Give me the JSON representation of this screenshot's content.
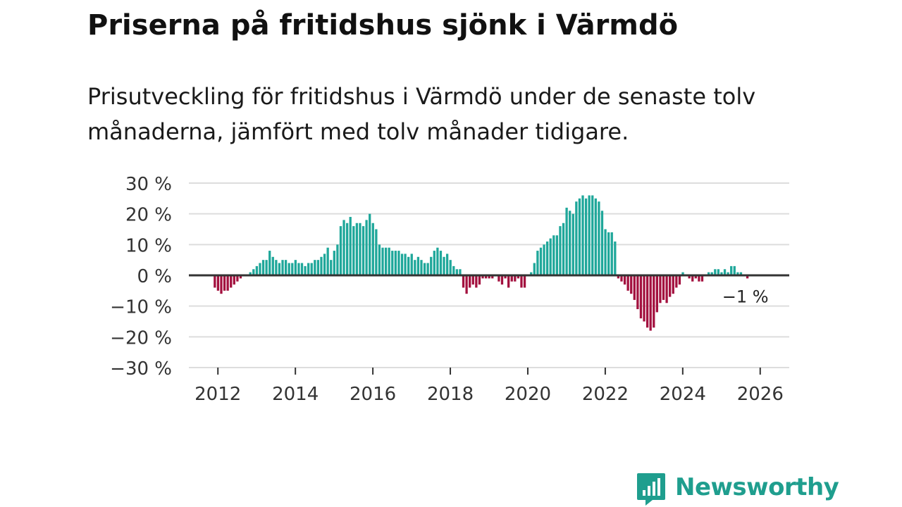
{
  "title": "Priserna på fritidshus sjönk i Värmdö",
  "subtitle": "Prisutveckling för fritidshus i Värmdö under de senaste tolv månaderna, jämfört med tolv månader tidigare.",
  "brand": {
    "name": "Newsworthy",
    "icon": "newsworthy-logo-icon",
    "color": "#1f9e8e"
  },
  "colors": {
    "positive": "#1fa79a",
    "negative": "#a3113f",
    "zero_line": "#333333",
    "grid": "#dddddd"
  },
  "chart_data": {
    "type": "bar",
    "title": "Priserna på fritidshus sjönk i Värmdö",
    "xlabel": "",
    "ylabel": "",
    "unit": "%",
    "ylim": [
      -30,
      30
    ],
    "yticks": [
      30,
      20,
      10,
      0,
      -10,
      -20,
      -30
    ],
    "ytick_labels": [
      "30 %",
      "20 %",
      "10 %",
      "0 %",
      "−10 %",
      "−20 %",
      "−30 %"
    ],
    "xlim": [
      2011.25,
      2026.75
    ],
    "xticks": [
      2012,
      2014,
      2016,
      2018,
      2020,
      2022,
      2024,
      2026
    ],
    "xtick_labels": [
      "2012",
      "2014",
      "2016",
      "2018",
      "2020",
      "2022",
      "2024",
      "2026"
    ],
    "grid": true,
    "start_year": 2011.92,
    "step_years": 0.08333,
    "values": [
      -4,
      -5,
      -6,
      -5,
      -5,
      -4,
      -3,
      -2,
      -1,
      0,
      0,
      1,
      2,
      3,
      4,
      5,
      5,
      8,
      6,
      5,
      4,
      5,
      5,
      4,
      4,
      5,
      4,
      4,
      3,
      4,
      4,
      5,
      5,
      6,
      7,
      9,
      5,
      8,
      10,
      16,
      18,
      17,
      19,
      16,
      17,
      17,
      16,
      18,
      20,
      17,
      15,
      10,
      9,
      9,
      9,
      8,
      8,
      8,
      7,
      7,
      6,
      7,
      5,
      6,
      5,
      4,
      4,
      6,
      8,
      9,
      8,
      6,
      7,
      5,
      3,
      2,
      2,
      -4,
      -6,
      -4,
      -3,
      -4,
      -3,
      -1,
      -1,
      -1,
      -1,
      0,
      -2,
      -3,
      -1,
      -4,
      -2,
      -2,
      -1,
      -4,
      -4,
      0,
      1,
      4,
      8,
      9,
      10,
      11,
      12,
      13,
      13,
      16,
      17,
      22,
      21,
      20,
      24,
      25,
      26,
      25,
      26,
      26,
      25,
      24,
      21,
      15,
      14,
      14,
      11,
      -1,
      -2,
      -3,
      -5,
      -6,
      -8,
      -11,
      -14,
      -15,
      -17,
      -18,
      -17,
      -12,
      -9,
      -8,
      -9,
      -7,
      -6,
      -4,
      -3,
      1,
      0,
      -1,
      -2,
      -1,
      -2,
      -2,
      0,
      1,
      1,
      2,
      2,
      1,
      2,
      1,
      3,
      3,
      1,
      1,
      0,
      -1
    ],
    "annotation": {
      "label": "−1 %",
      "value": -1,
      "position": "last bar, below right"
    }
  }
}
